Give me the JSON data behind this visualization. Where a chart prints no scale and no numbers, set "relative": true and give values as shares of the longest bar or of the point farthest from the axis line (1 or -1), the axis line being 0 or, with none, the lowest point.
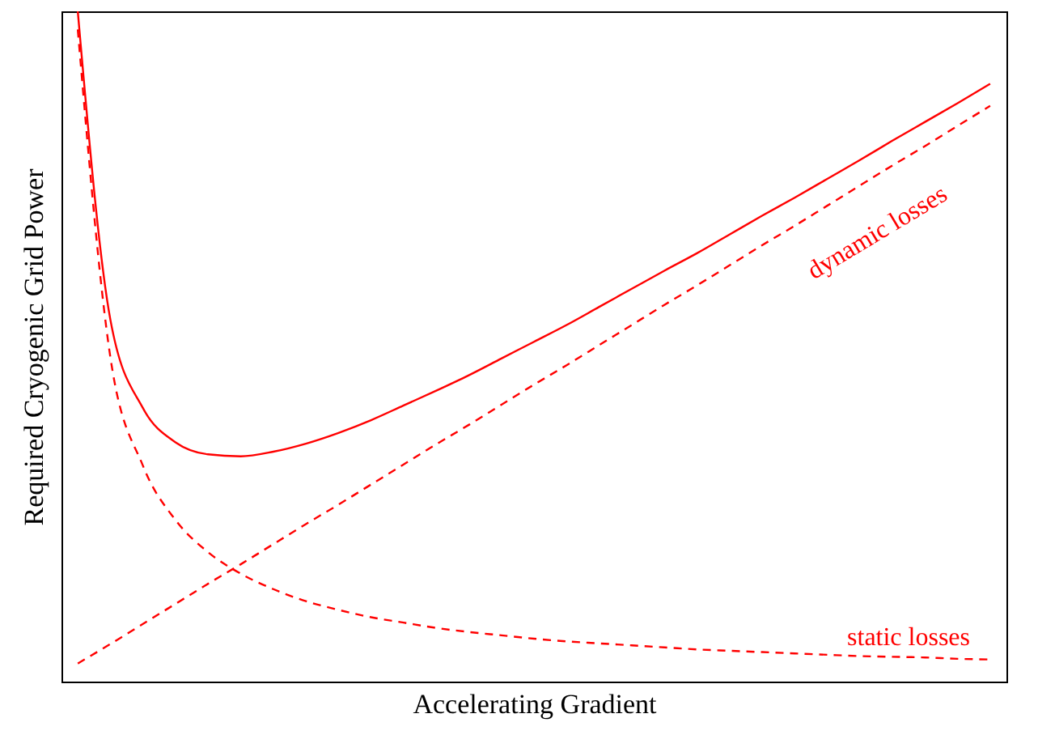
{
  "chart_data": {
    "type": "line",
    "relative": true,
    "xlabel": "Accelerating Gradient",
    "ylabel": "Required Cryogenic Grid Power",
    "tick_labels": false,
    "grid": false,
    "marker": "none",
    "categories": [
      null,
      null,
      null,
      null,
      null,
      null,
      null,
      null,
      null,
      null,
      null,
      null,
      null,
      null,
      null,
      null,
      null,
      null,
      null,
      null,
      null,
      null,
      null,
      null,
      null,
      null,
      null,
      null,
      null
    ],
    "series": [
      {
        "color": "#ff0000",
        "line_style": "solid",
        "values": [
          1.0,
          0.54,
          0.408,
          0.357,
          0.339,
          0.336,
          0.343,
          0.355,
          0.371,
          0.39,
          0.412,
          0.434,
          0.457,
          0.482,
          0.507,
          0.532,
          0.559,
          0.586,
          0.613,
          0.639,
          0.667,
          0.695,
          0.722,
          0.75,
          0.778,
          0.807,
          0.835,
          0.863,
          0.892
        ]
      },
      {
        "name": "static losses",
        "color": "#ff0000",
        "line_style": "dashed",
        "values": [
          0.973,
          0.484,
          0.322,
          0.241,
          0.193,
          0.161,
          0.138,
          0.12,
          0.107,
          0.096,
          0.088,
          0.08,
          0.074,
          0.069,
          0.064,
          0.06,
          0.057,
          0.054,
          0.051,
          0.048,
          0.046,
          0.044,
          0.042,
          0.04,
          0.038,
          0.037,
          0.036,
          0.034,
          0.033
        ]
      },
      {
        "name": "dynamic losses",
        "color": "#ff0000",
        "line_style": "dashed",
        "values": [
          0.027,
          0.056,
          0.086,
          0.116,
          0.146,
          0.175,
          0.205,
          0.235,
          0.264,
          0.294,
          0.324,
          0.354,
          0.383,
          0.413,
          0.443,
          0.472,
          0.502,
          0.532,
          0.562,
          0.591,
          0.621,
          0.651,
          0.68,
          0.71,
          0.74,
          0.77,
          0.799,
          0.829,
          0.859
        ]
      }
    ]
  }
}
